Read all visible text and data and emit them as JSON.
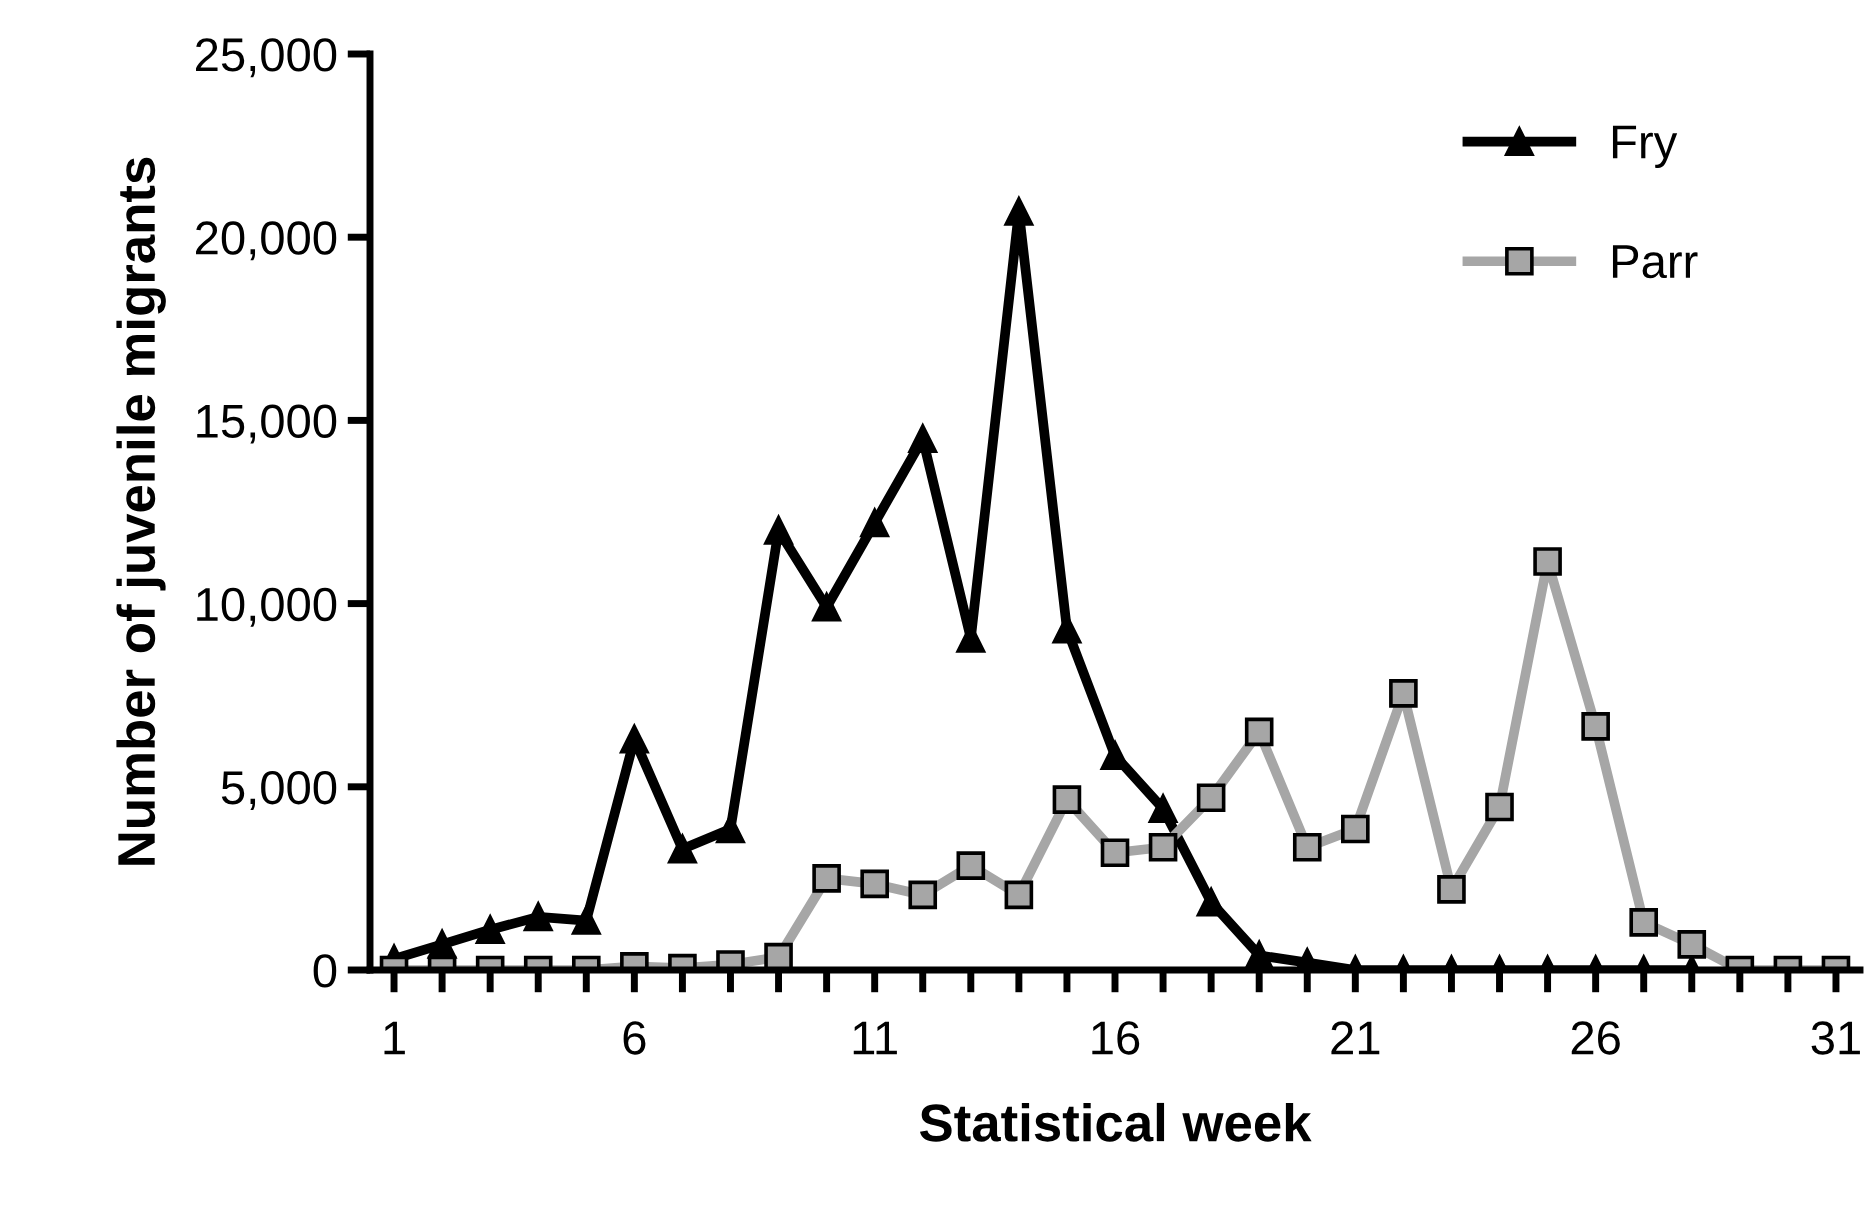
{
  "chart_data": {
    "type": "line",
    "xlabel": "Statistical week",
    "ylabel": "Number of juvenile migrants",
    "x": [
      1,
      2,
      3,
      4,
      5,
      6,
      7,
      8,
      9,
      10,
      11,
      12,
      13,
      14,
      15,
      16,
      17,
      18,
      19,
      20,
      21,
      22,
      23,
      24,
      25,
      26,
      27,
      28,
      29,
      30,
      31
    ],
    "series": [
      {
        "name": "Fry",
        "color": "#000000",
        "marker": "triangle",
        "x": [
          1,
          2,
          3,
          4,
          5,
          6,
          7,
          8,
          9,
          10,
          11,
          12,
          13,
          14,
          15,
          16,
          17,
          18,
          19,
          20,
          21,
          22,
          23,
          24,
          25,
          26,
          27,
          28
        ],
        "values": [
          300,
          700,
          1100,
          1450,
          1350,
          6300,
          3300,
          3850,
          12000,
          9900,
          12200,
          14500,
          9050,
          20700,
          9300,
          5850,
          4400,
          1850,
          400,
          200,
          0,
          0,
          0,
          0,
          0,
          0,
          0,
          0
        ]
      },
      {
        "name": "Parr",
        "color": "#a6a6a6",
        "marker": "square",
        "values": [
          0,
          0,
          0,
          0,
          0,
          100,
          50,
          150,
          350,
          2500,
          2350,
          2050,
          2850,
          2050,
          4650,
          3200,
          3350,
          4700,
          6500,
          3350,
          3850,
          7550,
          2200,
          4450,
          11150,
          6650,
          1300,
          700,
          0,
          0,
          0
        ]
      }
    ],
    "xlim": [
      0.5,
      31.5
    ],
    "xticks": [
      1,
      {
        "value": 2,
        "label": null
      },
      {
        "value": 3,
        "label": null
      },
      {
        "value": 4,
        "label": null
      },
      {
        "value": 5,
        "label": null
      },
      6,
      {
        "value": 7,
        "label": null
      },
      {
        "value": 8,
        "label": null
      },
      {
        "value": 9,
        "label": null
      },
      {
        "value": 10,
        "label": null
      },
      11,
      {
        "value": 12,
        "label": null
      },
      {
        "value": 13,
        "label": null
      },
      {
        "value": 14,
        "label": null
      },
      {
        "value": 15,
        "label": null
      },
      16,
      {
        "value": 17,
        "label": null
      },
      {
        "value": 18,
        "label": null
      },
      {
        "value": 19,
        "label": null
      },
      {
        "value": 20,
        "label": null
      },
      21,
      {
        "value": 22,
        "label": null
      },
      {
        "value": 23,
        "label": null
      },
      {
        "value": 24,
        "label": null
      },
      {
        "value": 25,
        "label": null
      },
      26,
      {
        "value": 27,
        "label": null
      },
      {
        "value": 28,
        "label": null
      },
      {
        "value": 29,
        "label": null
      },
      {
        "value": 30,
        "label": null
      },
      31
    ],
    "ylim": [
      0,
      25000
    ],
    "yticks": [
      {
        "value": 0,
        "label": "0"
      },
      {
        "value": 5000,
        "label": "5,000"
      },
      {
        "value": 10000,
        "label": "10,000"
      },
      {
        "value": 15000,
        "label": "15,000"
      },
      {
        "value": 20000,
        "label": "20,000"
      },
      {
        "value": 25000,
        "label": "25,000"
      }
    ],
    "grid": false,
    "legend": "top right",
    "line_style": "solid"
  }
}
